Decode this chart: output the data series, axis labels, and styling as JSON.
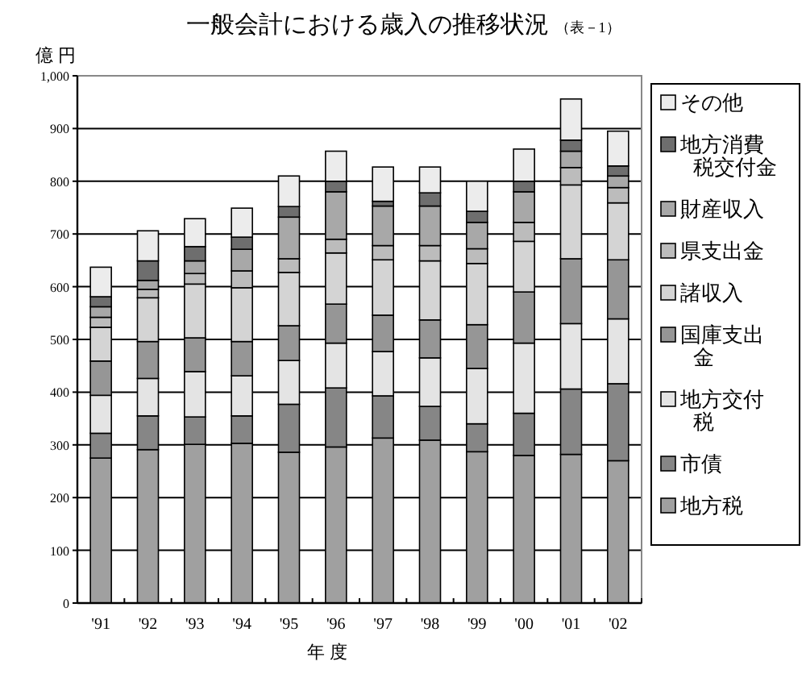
{
  "chart_data": {
    "type": "bar",
    "stacked": true,
    "title": "一般会計における歳入の推移状況",
    "subtitle": "（表－1）",
    "ylabel": "億 円",
    "xlabel": "年 度",
    "categories": [
      "'91",
      "'92",
      "'93",
      "'94",
      "'95",
      "'96",
      "'97",
      "'98",
      "'99",
      "'00",
      "'01",
      "'02"
    ],
    "ylim": [
      0,
      1000
    ],
    "yticks": [
      0,
      100,
      200,
      300,
      400,
      500,
      600,
      700,
      800,
      900,
      {
        "value": 1000,
        "label": "1,000"
      }
    ],
    "grid": "y",
    "legend": "right",
    "series": [
      {
        "name": "地方税",
        "color": "#a0a0a0",
        "values": [
          275,
          291,
          301,
          303,
          286,
          296,
          313,
          309,
          287,
          280,
          282,
          270
        ]
      },
      {
        "name": "市債",
        "color": "#868686",
        "values": [
          47,
          64,
          52,
          52,
          91,
          112,
          80,
          64,
          53,
          80,
          124,
          146
        ]
      },
      {
        "name": "地方交付税",
        "color": "#e4e4e4",
        "values": [
          72,
          71,
          86,
          76,
          83,
          85,
          84,
          92,
          105,
          133,
          124,
          123
        ]
      },
      {
        "name": "国庫支出金",
        "color": "#969696",
        "values": [
          65,
          70,
          64,
          65,
          66,
          74,
          69,
          72,
          83,
          97,
          123,
          112
        ]
      },
      {
        "name": "諸収入",
        "color": "#d4d4d4",
        "values": [
          64,
          83,
          102,
          102,
          101,
          97,
          105,
          112,
          116,
          96,
          140,
          108
        ]
      },
      {
        "name": "県支出金",
        "color": "#bcbcbc",
        "values": [
          19,
          16,
          20,
          32,
          26,
          26,
          27,
          29,
          28,
          36,
          33,
          29
        ]
      },
      {
        "name": "財産収入",
        "color": "#a8a8a8",
        "values": [
          20,
          17,
          24,
          41,
          79,
          90,
          75,
          75,
          50,
          58,
          31,
          22
        ]
      },
      {
        "name": "地方消費税交付金",
        "color": "#6e6e6e",
        "values": [
          19,
          37,
          27,
          23,
          20,
          20,
          9,
          25,
          21,
          20,
          21,
          19
        ]
      },
      {
        "name": "その他",
        "color": "#ececec",
        "values": [
          56,
          57,
          53,
          55,
          58,
          57,
          65,
          49,
          57,
          61,
          78,
          66
        ]
      }
    ]
  }
}
